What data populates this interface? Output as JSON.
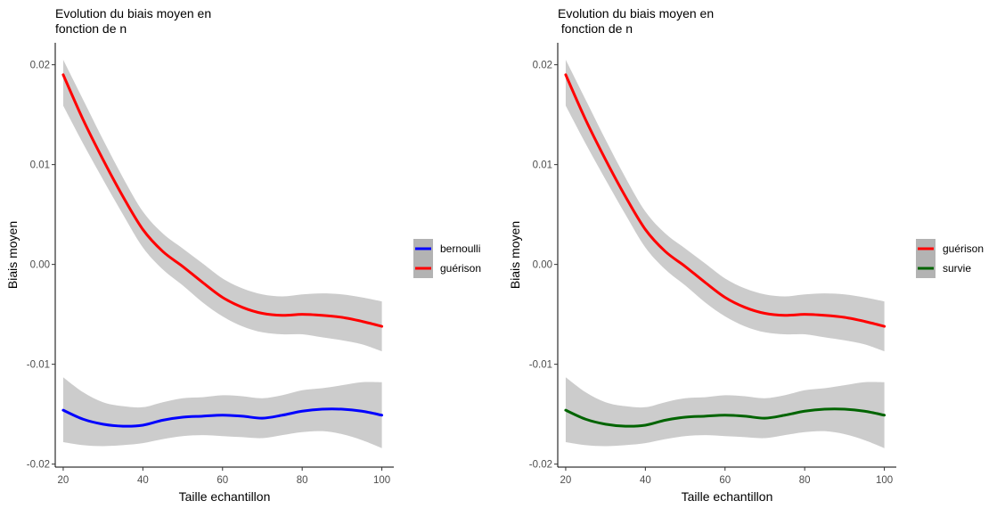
{
  "chart_data": [
    {
      "type": "line",
      "title": "Evolution du biais moyen en\nfonction de n",
      "xlabel": "Taille echantillon",
      "ylabel": "Biais moyen",
      "xlim": [
        18,
        103
      ],
      "ylim": [
        -0.0203,
        0.0222
      ],
      "xticks": [
        20,
        40,
        60,
        80,
        100
      ],
      "xtick_labels": [
        "20",
        "40",
        "60",
        "80",
        "100"
      ],
      "yticks": [
        0.02,
        0.01,
        0.0,
        -0.01,
        -0.02
      ],
      "ytick_labels": [
        "0.02",
        "0.01",
        "0.00",
        "-0.01",
        "-0.02"
      ],
      "grid": false,
      "legend_position": "right",
      "x": [
        20,
        25,
        30,
        35,
        40,
        45,
        50,
        55,
        60,
        65,
        70,
        75,
        80,
        85,
        90,
        95,
        100
      ],
      "series": [
        {
          "name": "bernoulli",
          "color": "#0000ff",
          "values": [
            -0.0146,
            -0.0155,
            -0.016,
            -0.0162,
            -0.0161,
            -0.0156,
            -0.0153,
            -0.0152,
            -0.0151,
            -0.0152,
            -0.0154,
            -0.0151,
            -0.0147,
            -0.0145,
            -0.0145,
            -0.0147,
            -0.0151
          ],
          "band_lower": [
            -0.0178,
            -0.0181,
            -0.0182,
            -0.0181,
            -0.0179,
            -0.0175,
            -0.0172,
            -0.0171,
            -0.0172,
            -0.0173,
            -0.0174,
            -0.0171,
            -0.0168,
            -0.0167,
            -0.017,
            -0.0176,
            -0.0184
          ],
          "band_upper": [
            -0.0113,
            -0.0128,
            -0.0138,
            -0.0142,
            -0.0143,
            -0.0138,
            -0.0134,
            -0.0133,
            -0.0131,
            -0.0132,
            -0.0134,
            -0.0131,
            -0.0126,
            -0.0124,
            -0.0121,
            -0.0118,
            -0.0118
          ]
        },
        {
          "name": "guérison",
          "color": "#ff0000",
          "values": [
            0.019,
            0.0145,
            0.0105,
            0.0068,
            0.0035,
            0.0013,
            -0.0002,
            -0.0018,
            -0.0033,
            -0.0043,
            -0.0049,
            -0.0051,
            -0.005,
            -0.0051,
            -0.0053,
            -0.0057,
            -0.0062
          ],
          "band_lower": [
            0.0159,
            0.0121,
            0.0085,
            0.005,
            0.0017,
            -0.0005,
            -0.0021,
            -0.0038,
            -0.0052,
            -0.0062,
            -0.0068,
            -0.007,
            -0.007,
            -0.0073,
            -0.0076,
            -0.008,
            -0.0087
          ],
          "band_upper": [
            0.0205,
            0.0165,
            0.0125,
            0.0087,
            0.0053,
            0.0031,
            0.0016,
            0.0001,
            -0.0014,
            -0.0024,
            -0.003,
            -0.0032,
            -0.003,
            -0.0029,
            -0.003,
            -0.0033,
            -0.0037
          ]
        }
      ]
    },
    {
      "type": "line",
      "title": "Evolution du biais moyen en\n fonction de n",
      "xlabel": "Taille echantillon",
      "ylabel": "Biais moyen",
      "xlim": [
        18,
        103
      ],
      "ylim": [
        -0.0203,
        0.0222
      ],
      "xticks": [
        20,
        40,
        60,
        80,
        100
      ],
      "xtick_labels": [
        "20",
        "40",
        "60",
        "80",
        "100"
      ],
      "yticks": [
        0.02,
        0.01,
        0.0,
        -0.01,
        -0.02
      ],
      "ytick_labels": [
        "0.02",
        "0.01",
        "0.00",
        "-0.01",
        "-0.02"
      ],
      "grid": false,
      "legend_position": "right",
      "x": [
        20,
        25,
        30,
        35,
        40,
        45,
        50,
        55,
        60,
        65,
        70,
        75,
        80,
        85,
        90,
        95,
        100
      ],
      "series": [
        {
          "name": "guérison",
          "color": "#ff0000",
          "values": [
            0.019,
            0.0145,
            0.0105,
            0.0068,
            0.0035,
            0.0013,
            -0.0002,
            -0.0018,
            -0.0033,
            -0.0043,
            -0.0049,
            -0.0051,
            -0.005,
            -0.0051,
            -0.0053,
            -0.0057,
            -0.0062
          ],
          "band_lower": [
            0.0159,
            0.0121,
            0.0085,
            0.005,
            0.0017,
            -0.0005,
            -0.0021,
            -0.0038,
            -0.0052,
            -0.0062,
            -0.0068,
            -0.007,
            -0.007,
            -0.0073,
            -0.0076,
            -0.008,
            -0.0087
          ],
          "band_upper": [
            0.0205,
            0.0165,
            0.0125,
            0.0087,
            0.0053,
            0.0031,
            0.0016,
            0.0001,
            -0.0014,
            -0.0024,
            -0.003,
            -0.0032,
            -0.003,
            -0.0029,
            -0.003,
            -0.0033,
            -0.0037
          ]
        },
        {
          "name": "survie",
          "color": "#006400",
          "values": [
            -0.0146,
            -0.0155,
            -0.016,
            -0.0162,
            -0.0161,
            -0.0156,
            -0.0153,
            -0.0152,
            -0.0151,
            -0.0152,
            -0.0154,
            -0.0151,
            -0.0147,
            -0.0145,
            -0.0145,
            -0.0147,
            -0.0151
          ],
          "band_lower": [
            -0.0178,
            -0.0181,
            -0.0182,
            -0.0181,
            -0.0179,
            -0.0175,
            -0.0172,
            -0.0171,
            -0.0172,
            -0.0173,
            -0.0174,
            -0.0171,
            -0.0168,
            -0.0167,
            -0.017,
            -0.0176,
            -0.0184
          ],
          "band_upper": [
            -0.0113,
            -0.0128,
            -0.0138,
            -0.0142,
            -0.0143,
            -0.0138,
            -0.0134,
            -0.0133,
            -0.0131,
            -0.0132,
            -0.0134,
            -0.0131,
            -0.0126,
            -0.0124,
            -0.0121,
            -0.0118,
            -0.0118
          ]
        }
      ]
    }
  ],
  "colors": {
    "band": "#cccccc",
    "legend_key_background": "#b3b3b3",
    "axis": "#000000"
  }
}
